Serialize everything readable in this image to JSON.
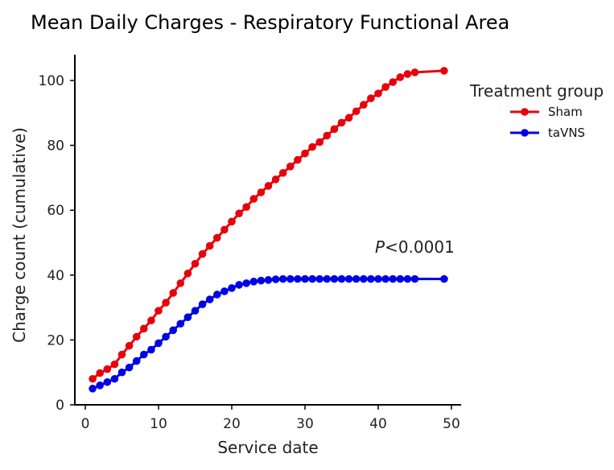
{
  "chart_data": {
    "type": "line",
    "title": "Mean Daily Charges - Respiratory Functional Area",
    "xlabel": "Service date",
    "ylabel": "Charge count (cumulative)",
    "xlim": [
      0,
      50
    ],
    "ylim": [
      0,
      107
    ],
    "xticks": [
      0,
      10,
      20,
      30,
      40,
      50
    ],
    "yticks": [
      0,
      20,
      40,
      60,
      80,
      100
    ],
    "grid": false,
    "legend": {
      "title": "Treatment group",
      "placement": "right"
    },
    "annotation": {
      "p_symbol": "P",
      "text": "<0.0001"
    },
    "series": [
      {
        "name": "Sham",
        "color": "#e8000b",
        "x": [
          1,
          2,
          3,
          4,
          5,
          6,
          7,
          8,
          9,
          10,
          11,
          12,
          13,
          14,
          15,
          16,
          17,
          18,
          19,
          20,
          21,
          22,
          23,
          24,
          25,
          26,
          27,
          28,
          29,
          30,
          31,
          32,
          33,
          34,
          35,
          36,
          37,
          38,
          39,
          40,
          41,
          42,
          43,
          44,
          45,
          49
        ],
        "y": [
          8,
          9.8,
          11,
          12.5,
          15.5,
          18.2,
          21,
          23.5,
          26,
          29,
          31.5,
          34.5,
          37.5,
          40.5,
          43.5,
          46.5,
          49,
          51.5,
          54,
          56.5,
          59,
          61,
          63.5,
          65.5,
          67.5,
          69.5,
          71.5,
          73.5,
          75.5,
          77.5,
          79.5,
          81,
          83,
          85,
          87,
          88.5,
          90.5,
          92.5,
          94.5,
          96,
          98,
          99.5,
          101,
          102,
          102.5,
          103
        ]
      },
      {
        "name": "taVNS",
        "color": "#0000e6",
        "x": [
          1,
          2,
          3,
          4,
          5,
          6,
          7,
          8,
          9,
          10,
          11,
          12,
          13,
          14,
          15,
          16,
          17,
          18,
          19,
          20,
          21,
          22,
          23,
          24,
          25,
          26,
          27,
          28,
          29,
          30,
          31,
          32,
          33,
          34,
          35,
          36,
          37,
          38,
          39,
          40,
          41,
          42,
          43,
          44,
          45,
          49
        ],
        "y": [
          5,
          6,
          7,
          8,
          10,
          11.5,
          13.5,
          15.5,
          17,
          19,
          21,
          23,
          25,
          27,
          29,
          31,
          32.5,
          34,
          35,
          36,
          37,
          37.5,
          38,
          38.3,
          38.5,
          38.7,
          38.8,
          38.8,
          38.8,
          38.8,
          38.8,
          38.8,
          38.8,
          38.8,
          38.8,
          38.8,
          38.8,
          38.8,
          38.8,
          38.8,
          38.8,
          38.8,
          38.8,
          38.8,
          38.8,
          38.8
        ]
      }
    ]
  }
}
